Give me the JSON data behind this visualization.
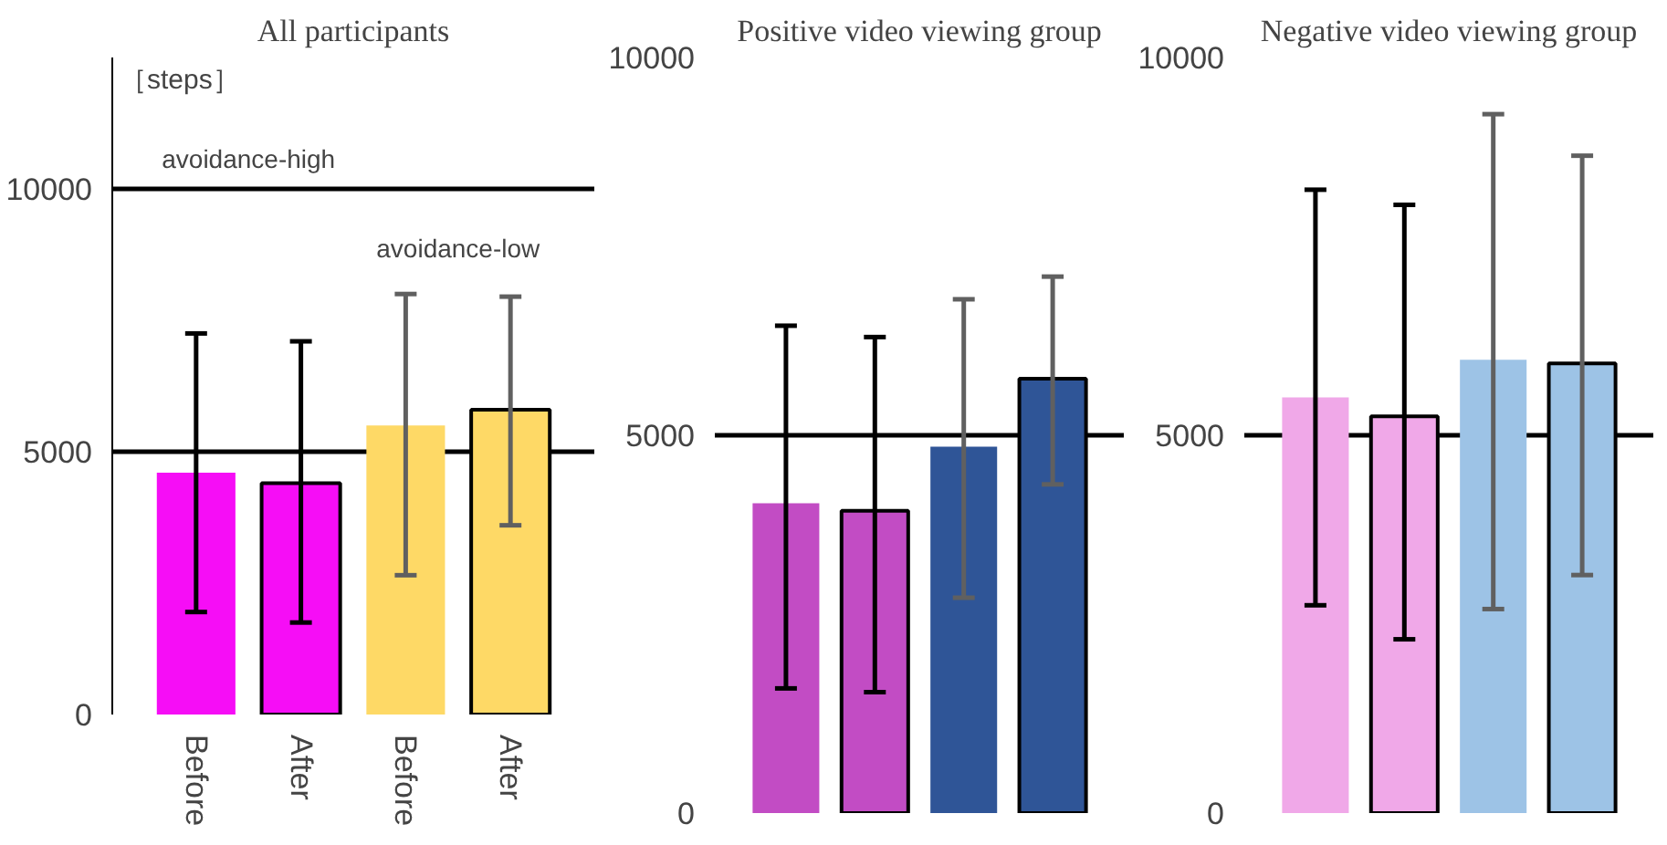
{
  "chart_data": [
    {
      "type": "bar",
      "title": "All participants",
      "ylabel": "［steps］",
      "categories": [
        "Before",
        "After",
        "Before",
        "After"
      ],
      "values": [
        4600,
        4400,
        5500,
        5800
      ],
      "colors": [
        "#f60df6",
        "#f60df6",
        "#fed966",
        "#fed966"
      ],
      "errors": [
        [
          1950,
          7250
        ],
        [
          1750,
          7100
        ],
        [
          2650,
          8000
        ],
        [
          3600,
          7950
        ]
      ],
      "ylim": [
        0,
        12500
      ],
      "yticks": [
        0,
        5000,
        10000
      ],
      "grid": "y",
      "annotations": [
        "avoidance-high",
        "avoidance-low"
      ]
    },
    {
      "type": "bar",
      "title": "Positive video viewing group",
      "categories": [
        null,
        null,
        null,
        null
      ],
      "values": [
        4100,
        4000,
        4850,
        5750
      ],
      "colors": [
        "#c24cc4",
        "#c24cc4",
        "#2f5597",
        "#2f5597"
      ],
      "errors": [
        [
          1650,
          6450
        ],
        [
          1600,
          6300
        ],
        [
          2850,
          6800
        ],
        [
          4350,
          7100
        ]
      ],
      "ylim": [
        0,
        10000
      ],
      "yticks": [
        0,
        5000,
        10000
      ],
      "grid": "y",
      "tick_labels": "y"
    },
    {
      "type": "bar",
      "title": "Negative video viewing group",
      "categories": [
        null,
        null,
        null,
        null
      ],
      "values": [
        5500,
        5250,
        6000,
        5950
      ],
      "colors": [
        "#f0a8e8",
        "#f0a8e8",
        "#9dc3e6",
        "#9dc3e6"
      ],
      "errors": [
        [
          2750,
          8250
        ],
        [
          2300,
          8050
        ],
        [
          2700,
          9250
        ],
        [
          3150,
          8700
        ]
      ],
      "ylim": [
        0,
        10000
      ],
      "yticks": [
        0,
        5000,
        10000
      ],
      "grid": "y",
      "tick_labels": "y"
    }
  ]
}
